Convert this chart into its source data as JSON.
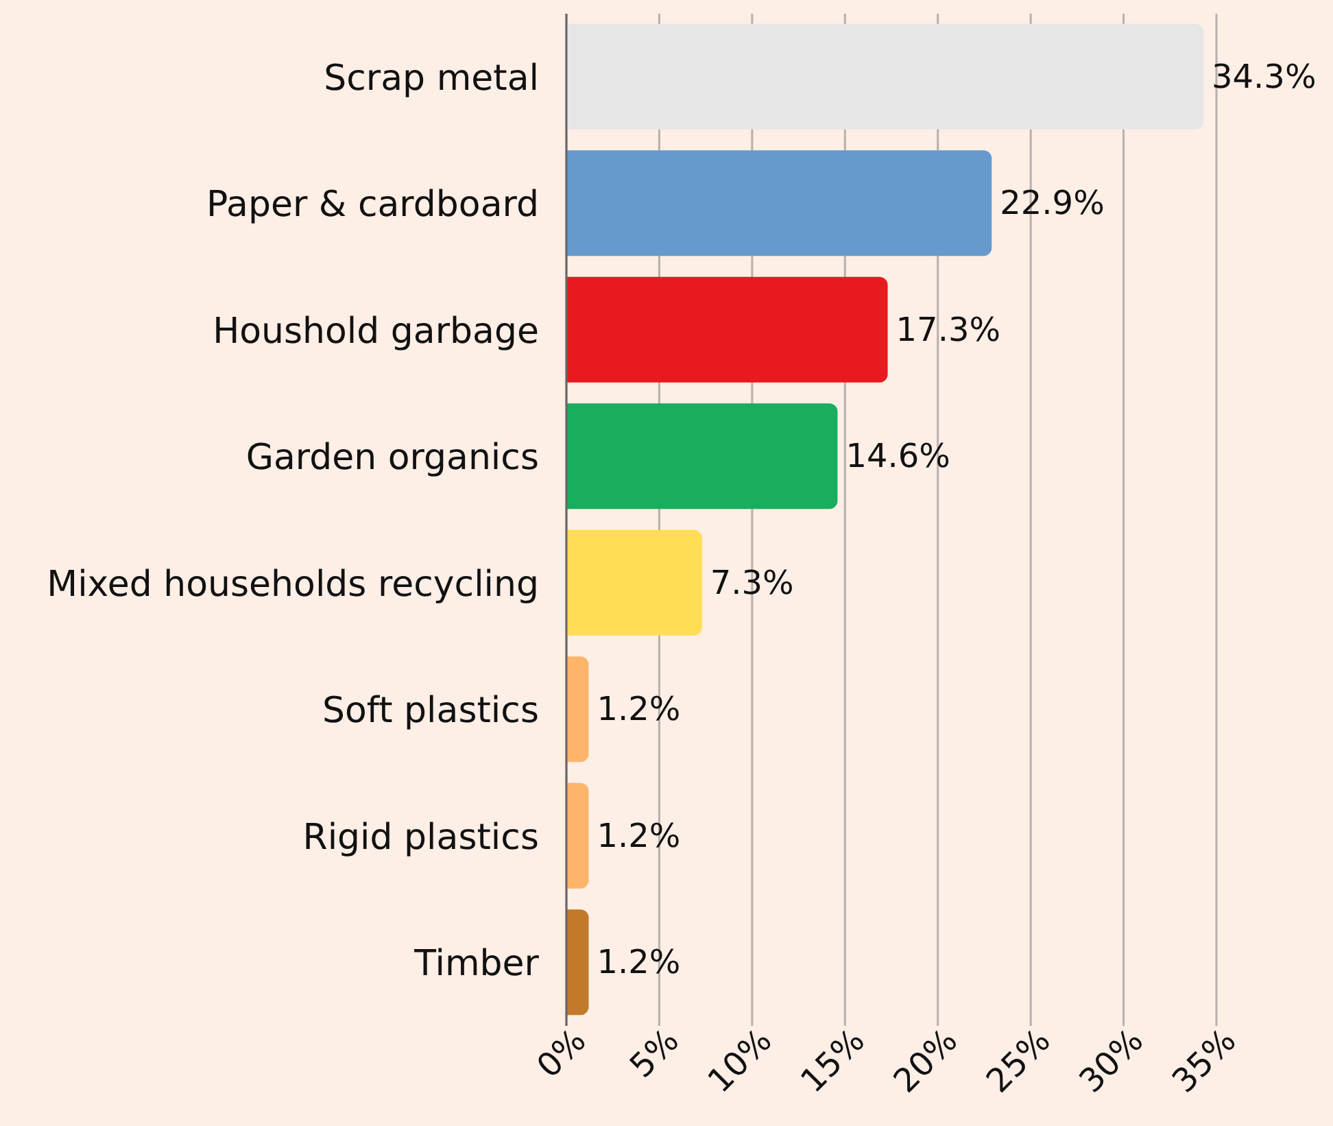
{
  "chart_data": {
    "type": "bar",
    "orientation": "horizontal",
    "categories": [
      "Scrap metal",
      "Paper & cardboard",
      "Houshold garbage",
      "Garden organics",
      "Mixed households recycling",
      "Soft plastics",
      "Rigid plastics",
      "Timber"
    ],
    "values": [
      34.3,
      22.9,
      17.3,
      14.6,
      7.3,
      1.2,
      1.2,
      1.2
    ],
    "value_labels": [
      "34.3%",
      "22.9%",
      "17.3%",
      "14.6%",
      "7.3%",
      "1.2%",
      "1.2%",
      "1.2%"
    ],
    "colors": [
      "#e6e6e6",
      "#6699cc",
      "#e8191f",
      "#19ae5e",
      "#ffdd55",
      "#fdb56a",
      "#fdb56a",
      "#c07a2a"
    ],
    "xlim": [
      0,
      35
    ],
    "xticks": [
      {
        "value": 0,
        "label": "0%"
      },
      {
        "value": 5,
        "label": "5%"
      },
      {
        "value": 10,
        "label": "10%"
      },
      {
        "value": 15,
        "label": "15%"
      },
      {
        "value": 20,
        "label": "20%"
      },
      {
        "value": 25,
        "label": "25%"
      },
      {
        "value": 30,
        "label": "30%"
      },
      {
        "value": 35,
        "label": "35%"
      }
    ],
    "grid": "x"
  }
}
